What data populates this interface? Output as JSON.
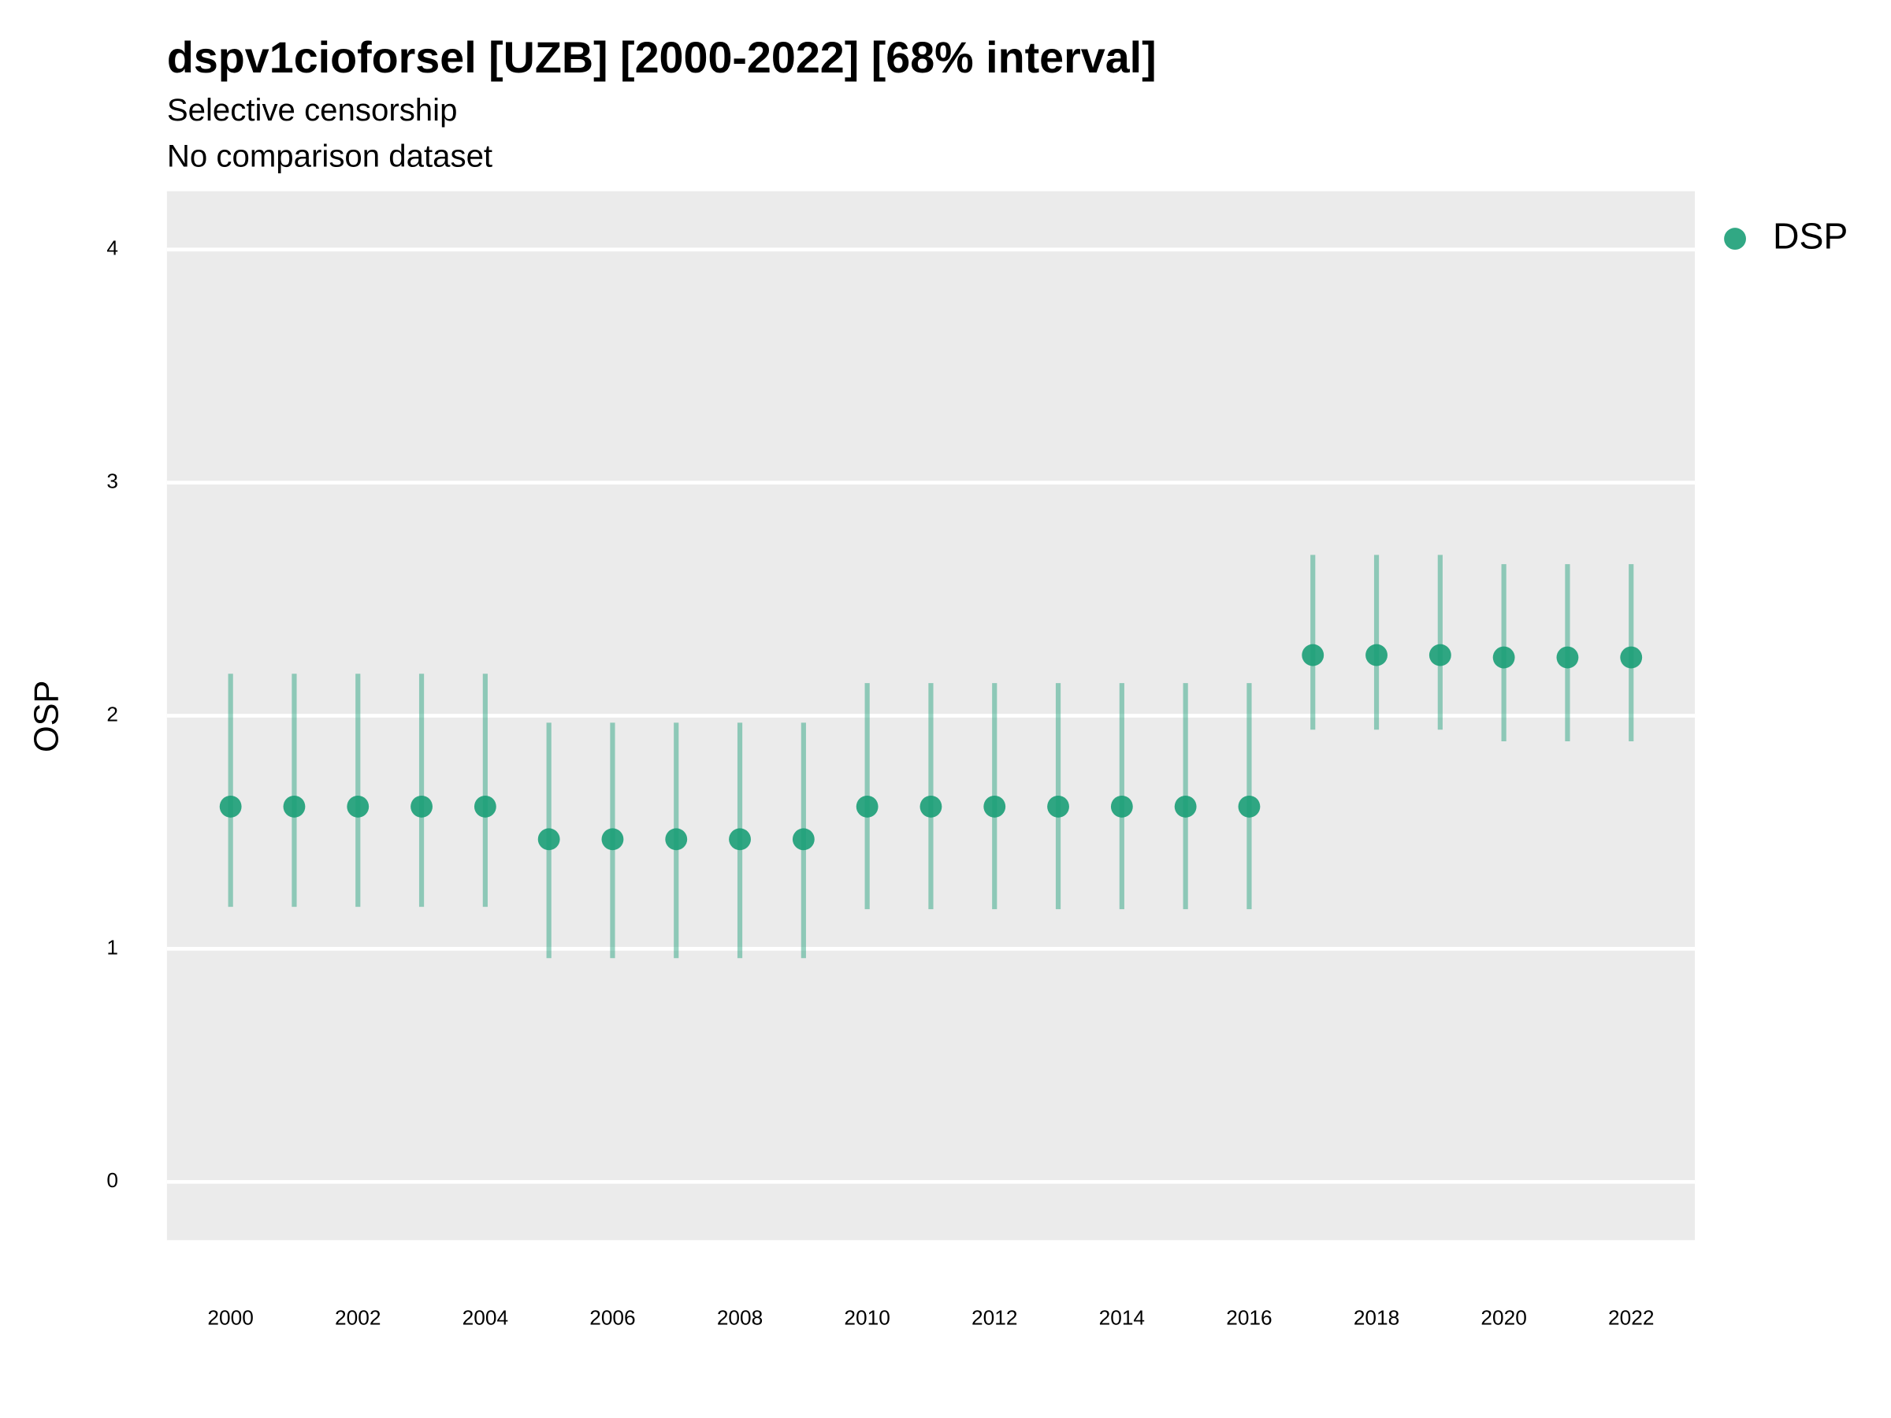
{
  "chart_data": {
    "type": "pointrange",
    "title": "dspv1cioforsel [UZB] [2000-2022] [68% interval]",
    "subtitle": "Selective censorship",
    "caption": "No comparison dataset",
    "y_label": "OSP",
    "x": [
      2000,
      2001,
      2002,
      2003,
      2004,
      2005,
      2006,
      2007,
      2008,
      2009,
      2010,
      2011,
      2012,
      2013,
      2014,
      2015,
      2016,
      2017,
      2018,
      2019,
      2020,
      2021,
      2022
    ],
    "series": [
      {
        "name": "DSP",
        "color": "#1b9e77",
        "values": [
          1.61,
          1.61,
          1.61,
          1.61,
          1.61,
          1.47,
          1.47,
          1.47,
          1.47,
          1.47,
          1.61,
          1.61,
          1.61,
          1.61,
          1.61,
          1.61,
          1.61,
          2.26,
          2.26,
          2.26,
          2.25,
          2.25,
          2.25
        ],
        "lower": [
          1.18,
          1.18,
          1.18,
          1.18,
          1.18,
          0.96,
          0.96,
          0.96,
          0.96,
          0.96,
          1.17,
          1.17,
          1.17,
          1.17,
          1.17,
          1.17,
          1.17,
          1.94,
          1.94,
          1.94,
          1.89,
          1.89,
          1.89
        ],
        "upper": [
          2.18,
          2.18,
          2.18,
          2.18,
          2.18,
          1.97,
          1.97,
          1.97,
          1.97,
          1.97,
          2.14,
          2.14,
          2.14,
          2.14,
          2.14,
          2.14,
          2.14,
          2.69,
          2.69,
          2.69,
          2.65,
          2.65,
          2.65
        ]
      }
    ],
    "xlim": [
      1999,
      2023
    ],
    "xticks": [
      2000,
      2002,
      2004,
      2006,
      2008,
      2010,
      2012,
      2014,
      2016,
      2018,
      2020,
      2022
    ],
    "ylim": [
      -0.25,
      4.25
    ],
    "yticks": [
      0,
      1,
      2,
      3,
      4
    ],
    "grid": true,
    "legend": "right"
  }
}
